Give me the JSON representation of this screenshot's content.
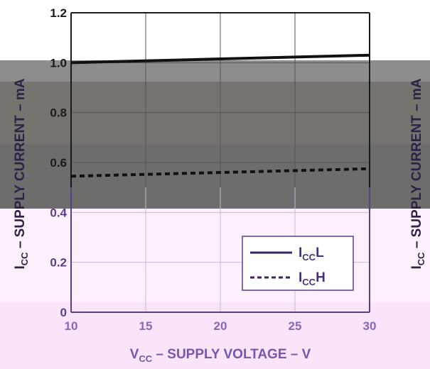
{
  "chart_data": {
    "type": "line",
    "title": "",
    "xlabel": {
      "main": "V",
      "sub": "CC",
      "rest": " – SUPPLY VOLTAGE – V"
    },
    "ylabel": {
      "main": "I",
      "sub": "CC",
      "rest": " – SUPPLY CURRENT – mA"
    },
    "xlim": [
      10,
      30
    ],
    "ylim": [
      0,
      1.2
    ],
    "xticks": [
      "10",
      "15",
      "20",
      "25",
      "30"
    ],
    "yticks": [
      "0",
      "0.2",
      "0.4",
      "0.6",
      "0.8",
      "1.0",
      "1.2"
    ],
    "xtick_values": [
      10,
      15,
      20,
      25,
      30
    ],
    "ytick_values": [
      0,
      0.2,
      0.4,
      0.6,
      0.8,
      1.0,
      1.2
    ],
    "grid": true,
    "legend_position": "bottom-right",
    "series": [
      {
        "label_main": "I",
        "label_sub": "CC",
        "label_suffix": "L",
        "style": "solid",
        "x": [
          10,
          20,
          30
        ],
        "y": [
          1.0,
          1.015,
          1.03
        ]
      },
      {
        "label_main": "I",
        "label_sub": "CC",
        "label_suffix": "H",
        "style": "dotted",
        "x": [
          10,
          20,
          30
        ],
        "y": [
          0.545,
          0.56,
          0.575
        ]
      }
    ]
  },
  "colors": {
    "page_background": "#ffffff",
    "band_gray": "#8d8d8d",
    "band_gray_dark": "#6f6d6b",
    "band_pink": "#fdf0fd",
    "band_pink_deep": "#f6d9f6",
    "axis_dark": "#1a1a1a",
    "axis_purple": "#5b3e8a",
    "grid_dark": "#444444",
    "grid_light": "#c9b8d8"
  }
}
